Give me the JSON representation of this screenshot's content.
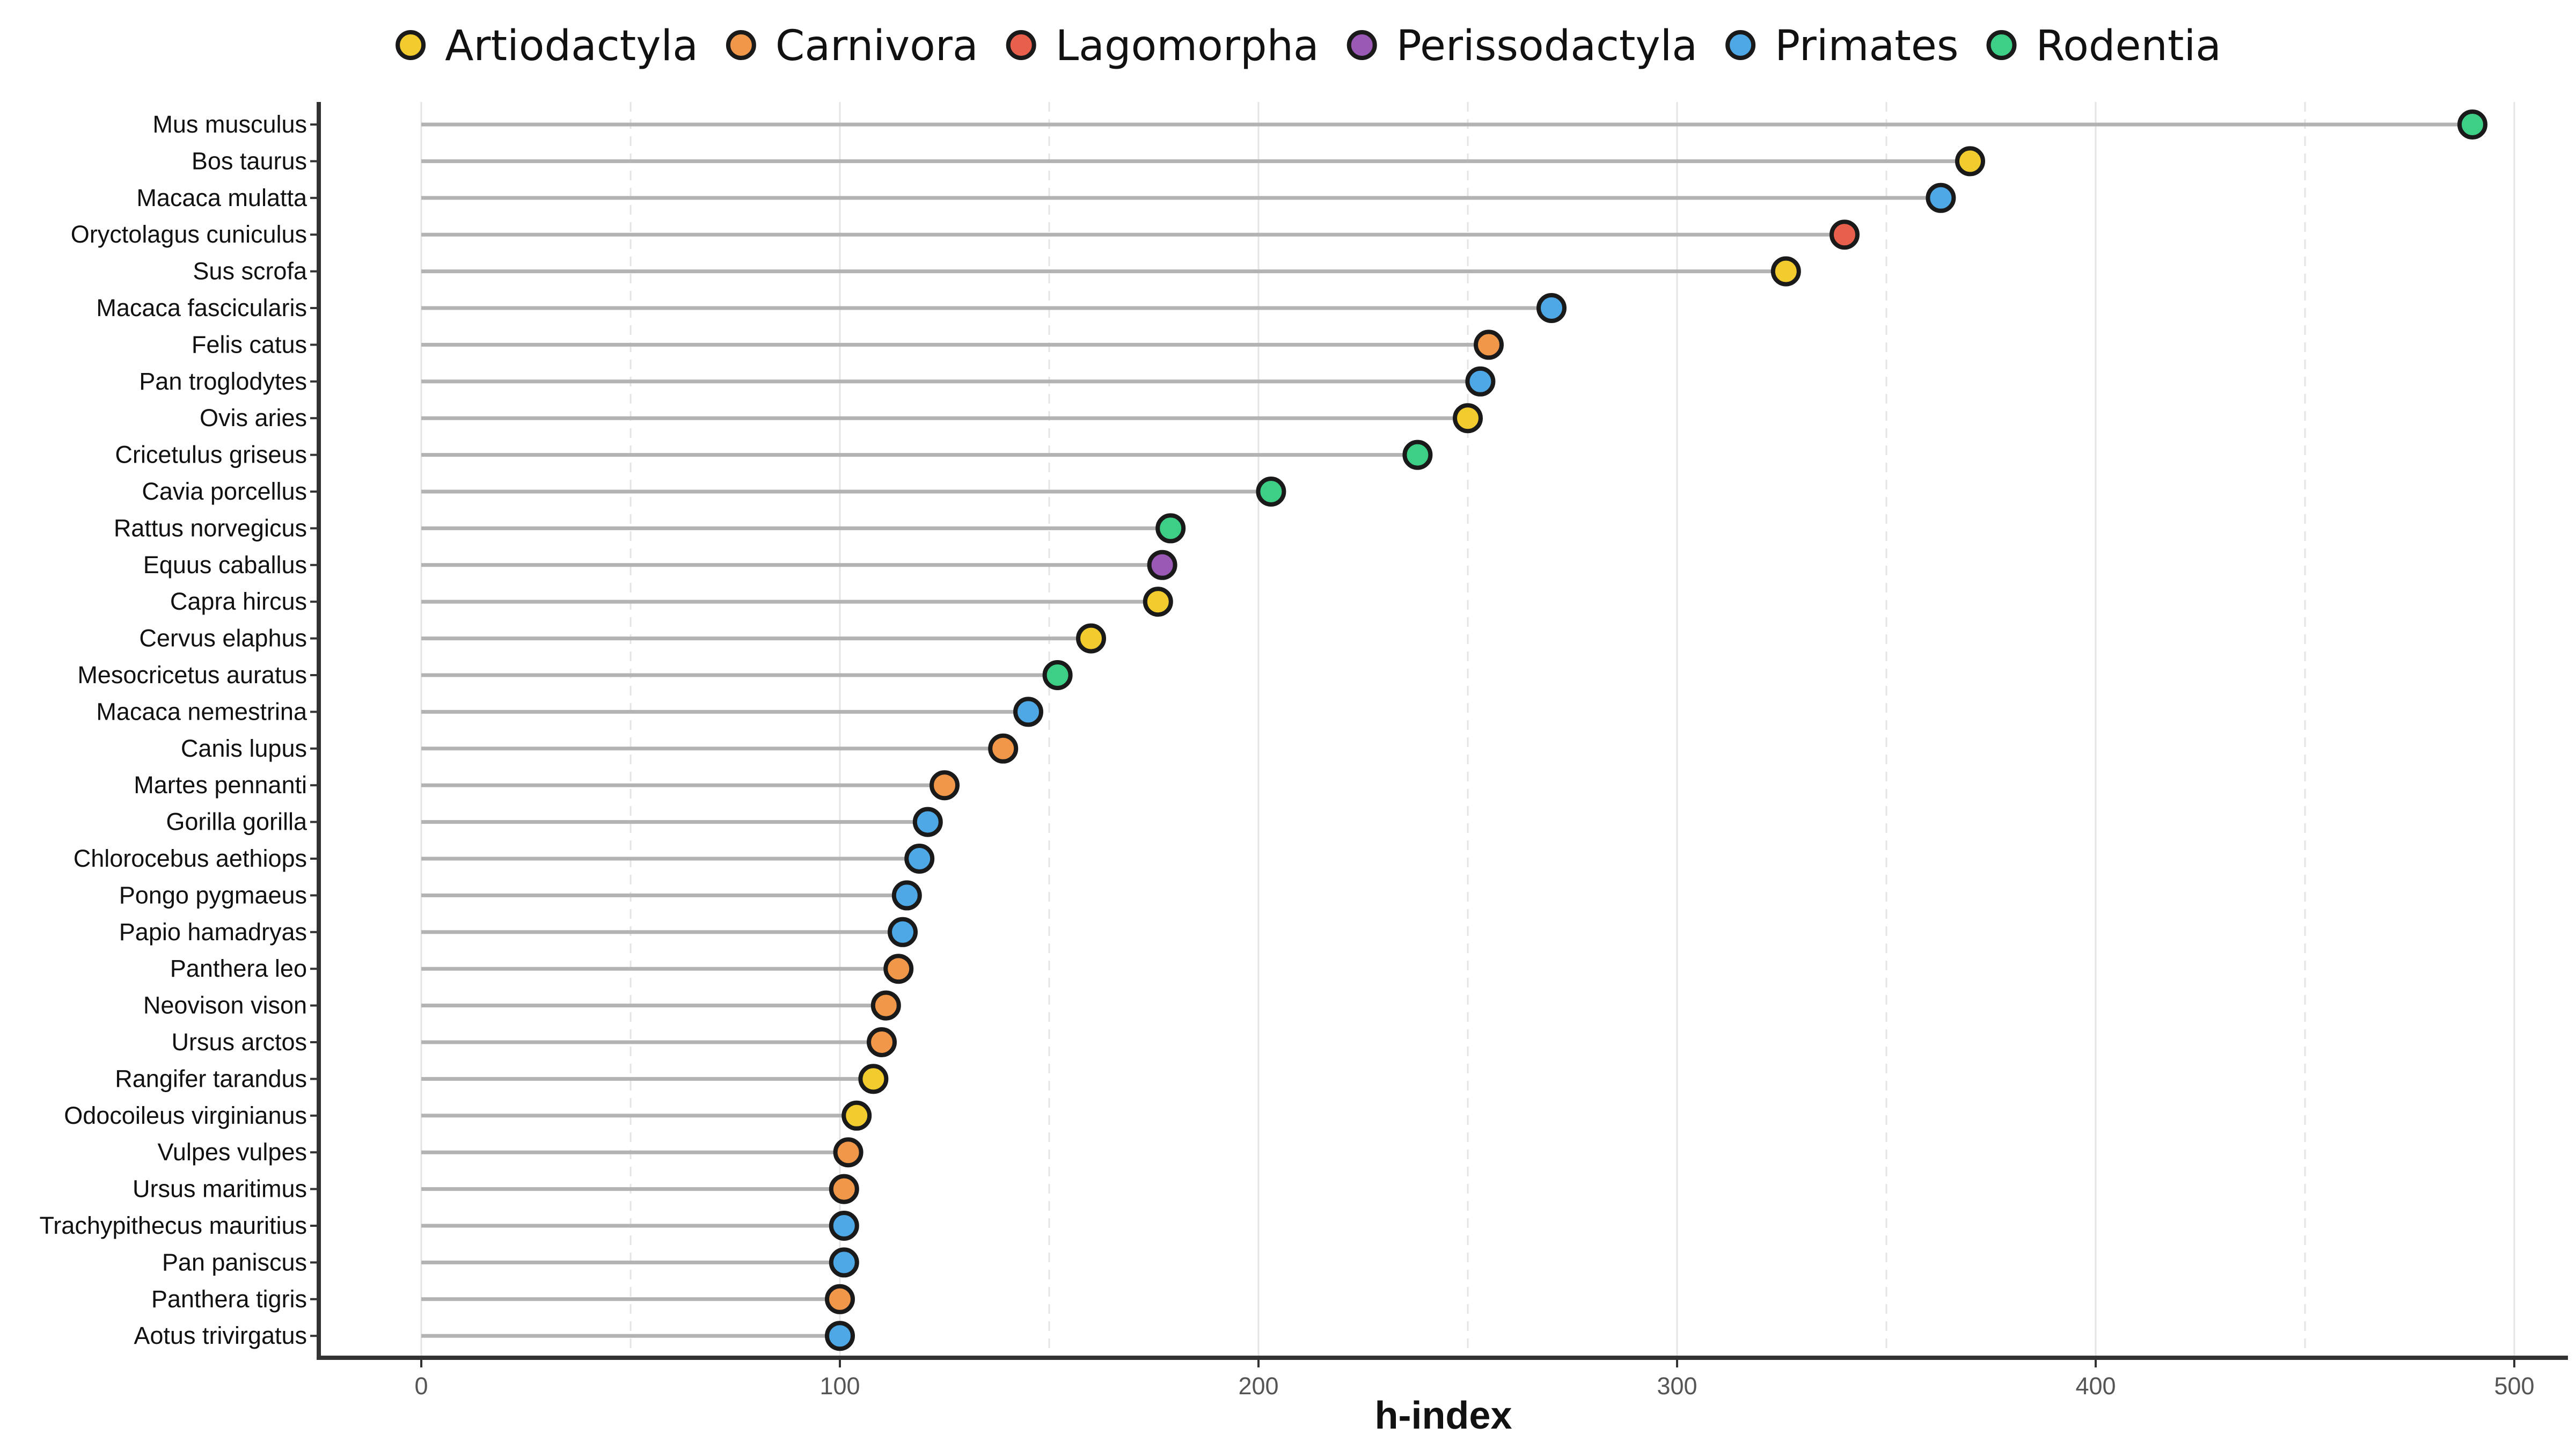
{
  "chart_data": {
    "type": "lollipop",
    "xlabel": "h-index",
    "xlim": [
      -25,
      515
    ],
    "x_ticks": [
      0,
      100,
      200,
      300,
      400,
      500
    ],
    "grid": "vertical",
    "legend_position": "top",
    "groups": [
      {
        "name": "Artiodactyla",
        "color": "#F2CC2E"
      },
      {
        "name": "Carnivora",
        "color": "#F0974A"
      },
      {
        "name": "Lagomorpha",
        "color": "#E8604C"
      },
      {
        "name": "Perissodactyla",
        "color": "#9B59B6"
      },
      {
        "name": "Primates",
        "color": "#4EA8E6"
      },
      {
        "name": "Rodentia",
        "color": "#3CCF85"
      }
    ],
    "points": [
      {
        "label": "Mus musculus",
        "value": 490,
        "group": "Rodentia"
      },
      {
        "label": "Bos taurus",
        "value": 370,
        "group": "Artiodactyla"
      },
      {
        "label": "Macaca mulatta",
        "value": 363,
        "group": "Primates"
      },
      {
        "label": "Oryctolagus cuniculus",
        "value": 340,
        "group": "Lagomorpha"
      },
      {
        "label": "Sus scrofa",
        "value": 326,
        "group": "Artiodactyla"
      },
      {
        "label": "Macaca fascicularis",
        "value": 270,
        "group": "Primates"
      },
      {
        "label": "Felis catus",
        "value": 255,
        "group": "Carnivora"
      },
      {
        "label": "Pan troglodytes",
        "value": 253,
        "group": "Primates"
      },
      {
        "label": "Ovis aries",
        "value": 250,
        "group": "Artiodactyla"
      },
      {
        "label": "Cricetulus griseus",
        "value": 238,
        "group": "Rodentia"
      },
      {
        "label": "Cavia porcellus",
        "value": 203,
        "group": "Rodentia"
      },
      {
        "label": "Rattus norvegicus",
        "value": 179,
        "group": "Rodentia"
      },
      {
        "label": "Equus caballus",
        "value": 177,
        "group": "Perissodactyla"
      },
      {
        "label": "Capra hircus",
        "value": 176,
        "group": "Artiodactyla"
      },
      {
        "label": "Cervus elaphus",
        "value": 160,
        "group": "Artiodactyla"
      },
      {
        "label": "Mesocricetus auratus",
        "value": 152,
        "group": "Rodentia"
      },
      {
        "label": "Macaca nemestrina",
        "value": 145,
        "group": "Primates"
      },
      {
        "label": "Canis lupus",
        "value": 139,
        "group": "Carnivora"
      },
      {
        "label": "Martes pennanti",
        "value": 125,
        "group": "Carnivora"
      },
      {
        "label": "Gorilla gorilla",
        "value": 121,
        "group": "Primates"
      },
      {
        "label": "Chlorocebus aethiops",
        "value": 119,
        "group": "Primates"
      },
      {
        "label": "Pongo pygmaeus",
        "value": 116,
        "group": "Primates"
      },
      {
        "label": "Papio hamadryas",
        "value": 115,
        "group": "Primates"
      },
      {
        "label": "Panthera leo",
        "value": 114,
        "group": "Carnivora"
      },
      {
        "label": "Neovison vison",
        "value": 111,
        "group": "Carnivora"
      },
      {
        "label": "Ursus arctos",
        "value": 110,
        "group": "Carnivora"
      },
      {
        "label": "Rangifer tarandus",
        "value": 108,
        "group": "Artiodactyla"
      },
      {
        "label": "Odocoileus virginianus",
        "value": 104,
        "group": "Artiodactyla"
      },
      {
        "label": "Vulpes vulpes",
        "value": 102,
        "group": "Carnivora"
      },
      {
        "label": "Ursus maritimus",
        "value": 101,
        "group": "Carnivora"
      },
      {
        "label": "Trachypithecus mauritius",
        "value": 101,
        "group": "Primates"
      },
      {
        "label": "Pan paniscus",
        "value": 101,
        "group": "Primates"
      },
      {
        "label": "Panthera tigris",
        "value": 100,
        "group": "Carnivora"
      },
      {
        "label": "Aotus trivirgatus",
        "value": 100,
        "group": "Primates"
      }
    ]
  }
}
